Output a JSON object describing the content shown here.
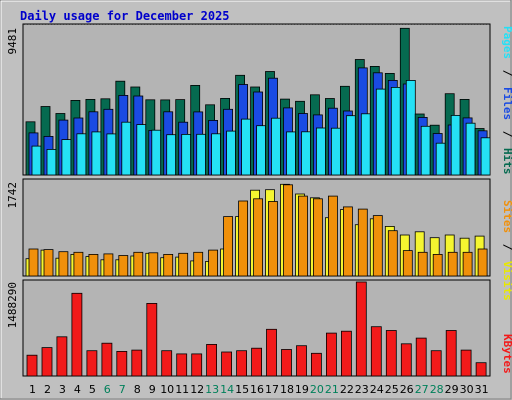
{
  "chart_data": [
    {
      "type": "bar",
      "title": "Daily usage for December 2025",
      "categories": [
        "1",
        "2",
        "3",
        "4",
        "5",
        "6",
        "7",
        "8",
        "9",
        "10",
        "11",
        "12",
        "13",
        "14",
        "15",
        "16",
        "17",
        "18",
        "19",
        "20",
        "21",
        "22",
        "23",
        "24",
        "25",
        "26",
        "27",
        "28",
        "29",
        "30",
        "31"
      ],
      "weekend_days": [
        "6",
        "7",
        "13",
        "14",
        "20",
        "21",
        "27",
        "28"
      ],
      "y_max_label": "9481",
      "ylim": [
        0,
        9481
      ],
      "series": [
        {
          "name": "Hits",
          "color": "#066a50",
          "values": [
            3410,
            4390,
            3940,
            4780,
            4840,
            4880,
            6010,
            5640,
            4820,
            4810,
            4830,
            5740,
            4500,
            4910,
            6390,
            5640,
            6630,
            4860,
            4720,
            5140,
            4900,
            5680,
            7400,
            6960,
            6510,
            9400,
            3910,
            3190,
            5210,
            4840,
            2980
          ]
        },
        {
          "name": "Files",
          "color": "#1a4be3",
          "values": [
            2700,
            2470,
            3520,
            3650,
            4050,
            4210,
            5100,
            5060,
            2860,
            4050,
            3380,
            4040,
            3500,
            4210,
            5800,
            5320,
            6200,
            4300,
            3940,
            3850,
            4280,
            4100,
            6860,
            6550,
            6060,
            5830,
            3690,
            2660,
            3200,
            3660,
            2830
          ]
        },
        {
          "name": "Pages",
          "color": "#25e0f5",
          "values": [
            1850,
            1640,
            2270,
            2640,
            2760,
            2630,
            3380,
            3230,
            2870,
            2580,
            2600,
            2610,
            2640,
            2810,
            3580,
            3160,
            3640,
            2760,
            2770,
            3010,
            3000,
            3800,
            3920,
            5500,
            5610,
            6060,
            3120,
            2040,
            3820,
            3320,
            2380
          ]
        }
      ],
      "legend": [
        "Pages",
        "Files",
        "Hits"
      ],
      "legend_separator": "/"
    },
    {
      "type": "bar",
      "categories": [
        "1",
        "2",
        "3",
        "4",
        "5",
        "6",
        "7",
        "8",
        "9",
        "10",
        "11",
        "12",
        "13",
        "14",
        "15",
        "16",
        "17",
        "18",
        "19",
        "20",
        "21",
        "22",
        "23",
        "24",
        "25",
        "26",
        "27",
        "28",
        "29",
        "30",
        "31"
      ],
      "y_max_label": "1742",
      "ylim": [
        0,
        1742
      ],
      "series": [
        {
          "name": "Visits",
          "color": "#f5f530",
          "values": [
            320,
            480,
            330,
            400,
            360,
            300,
            300,
            370,
            420,
            340,
            350,
            280,
            270,
            500,
            1100,
            1590,
            1600,
            1700,
            1520,
            1450,
            1080,
            1230,
            950,
            1060,
            920,
            760,
            820,
            710,
            760,
            700,
            740
          ]
        },
        {
          "name": "Sites",
          "color": "#f0900a",
          "values": [
            500,
            490,
            450,
            440,
            400,
            410,
            380,
            440,
            430,
            400,
            420,
            440,
            480,
            1100,
            1390,
            1430,
            1380,
            1690,
            1480,
            1430,
            1480,
            1280,
            1240,
            1120,
            840,
            470,
            440,
            400,
            440,
            440,
            500
          ]
        }
      ],
      "legend": [
        "Sites",
        "Visits"
      ],
      "legend_separator": "/"
    },
    {
      "type": "bar",
      "categories": [
        "1",
        "2",
        "3",
        "4",
        "5",
        "6",
        "7",
        "8",
        "9",
        "10",
        "11",
        "12",
        "13",
        "14",
        "15",
        "16",
        "17",
        "18",
        "19",
        "20",
        "21",
        "22",
        "23",
        "24",
        "25",
        "26",
        "27",
        "28",
        "29",
        "30",
        "31"
      ],
      "y_max_label": "1488290",
      "ylim": [
        0,
        1488290
      ],
      "series": [
        {
          "name": "KBytes",
          "color": "#f21a1a",
          "values": [
            330000,
            450000,
            620000,
            1310000,
            400000,
            520000,
            390000,
            410000,
            1150000,
            400000,
            350000,
            350000,
            500000,
            380000,
            400000,
            440000,
            740000,
            420000,
            480000,
            360000,
            680000,
            710000,
            1510000,
            780000,
            720000,
            510000,
            600000,
            400000,
            720000,
            410000,
            210000
          ]
        }
      ],
      "legend": [
        "KBytes"
      ],
      "legend_separator": "/"
    }
  ]
}
